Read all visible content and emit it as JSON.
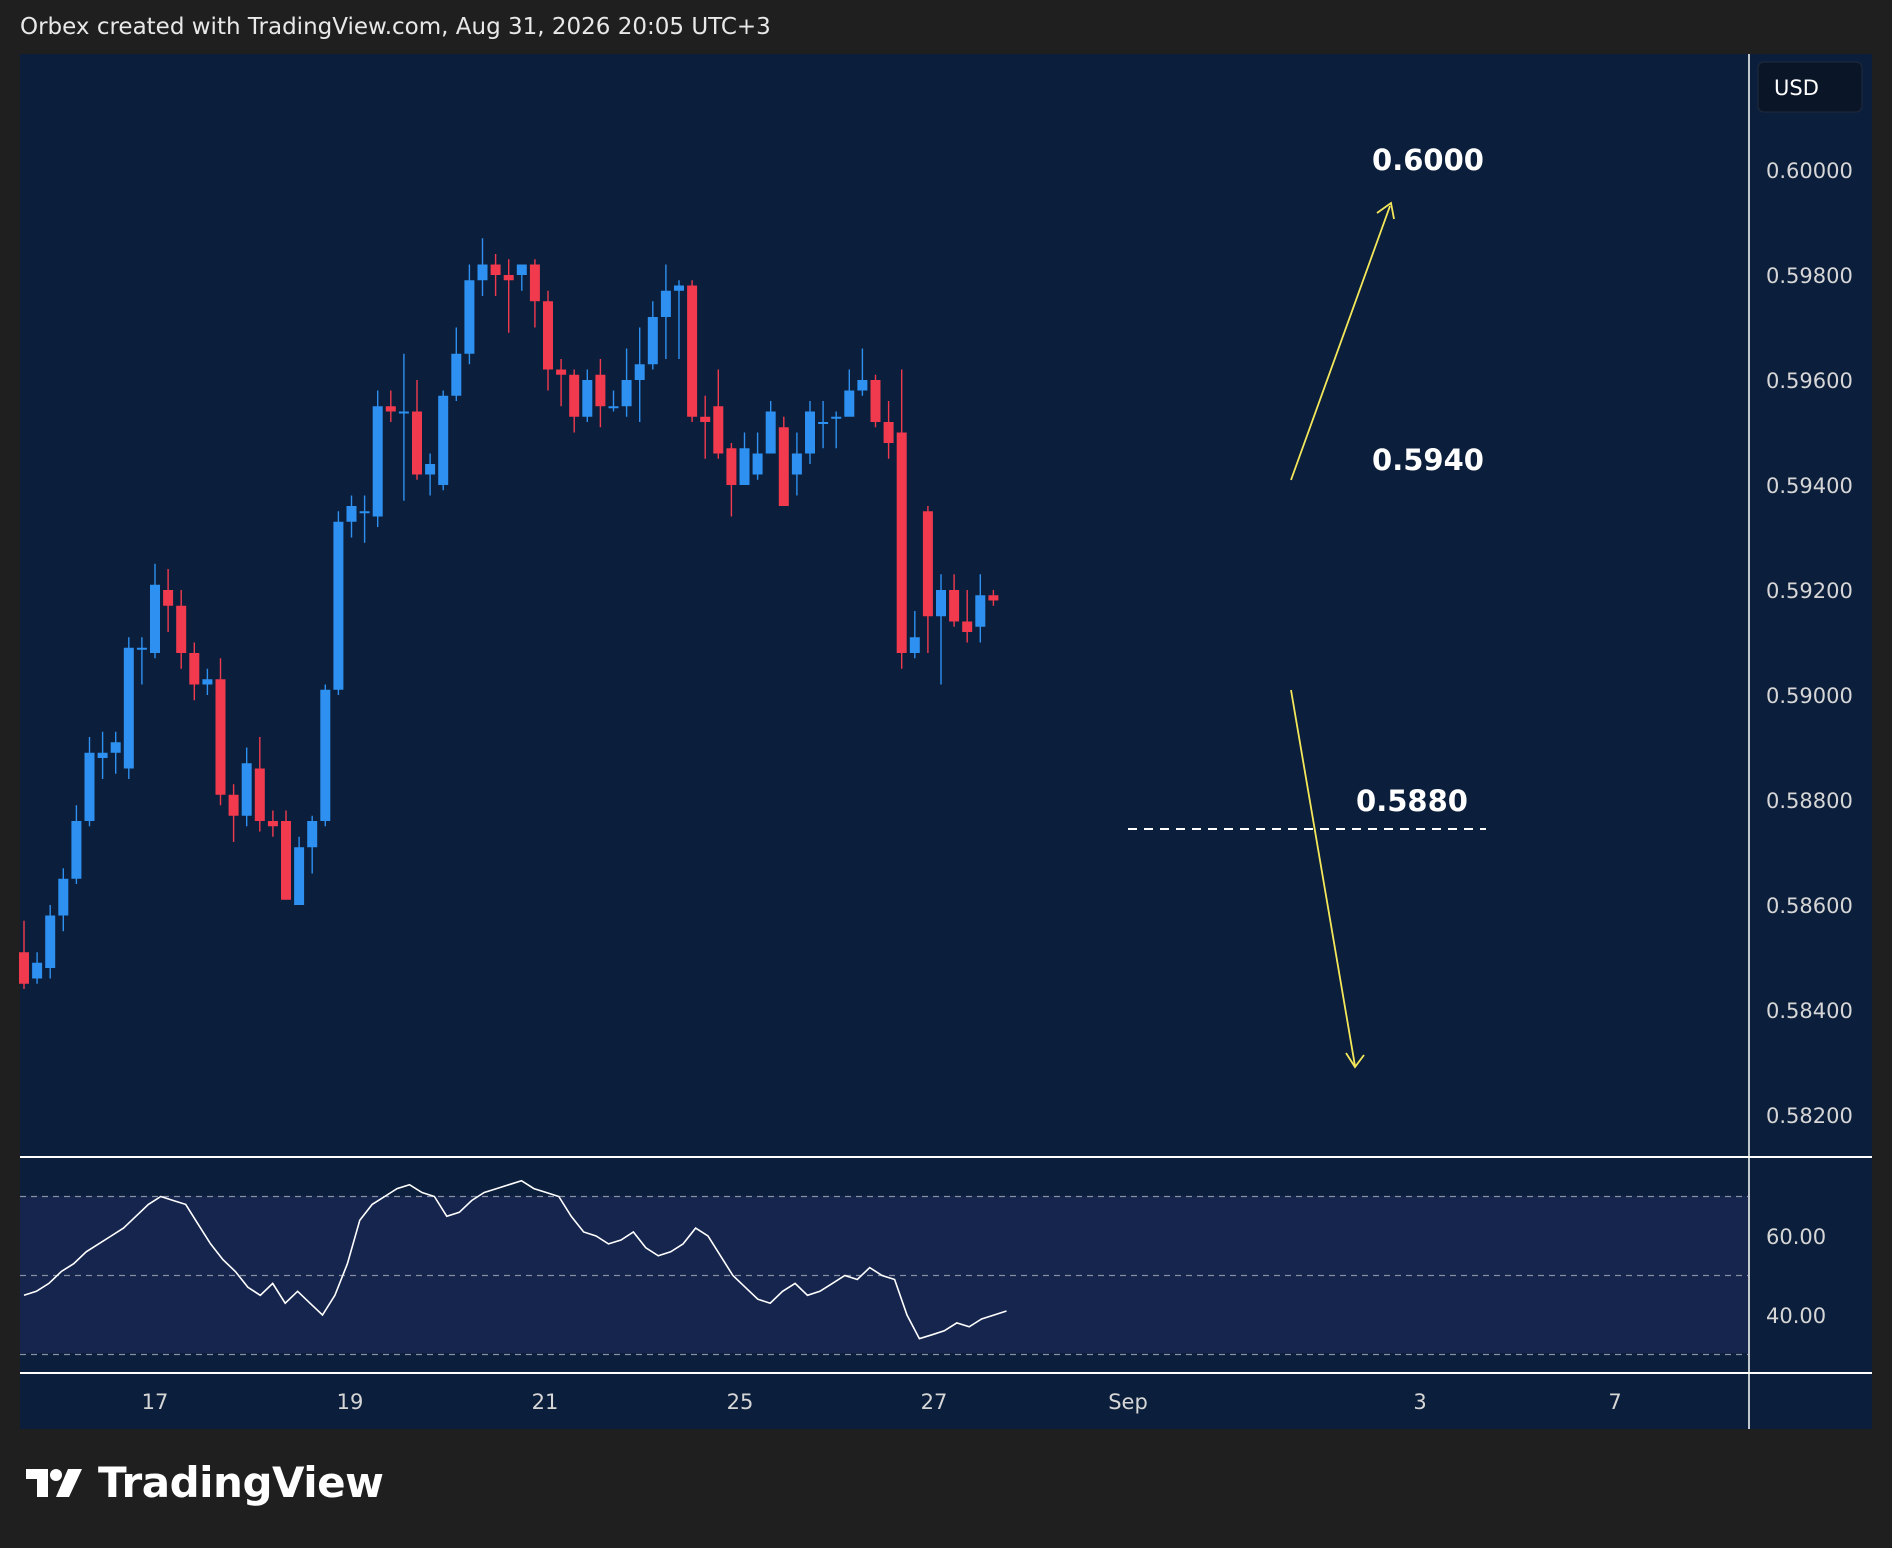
{
  "header": {
    "attribution": "Orbex created with TradingView.com, Aug 31, 2026 20:05 UTC+3"
  },
  "footer": {
    "logo_text": "TradingView"
  },
  "colors": {
    "background": "#1f1f1f",
    "pane": "#0b1e3b",
    "oscillator_band": "#16254d",
    "up_candle": "#2e90f0",
    "down_candle": "#f23a4e",
    "arrow": "#f4e85a",
    "text": "#ffffff",
    "axis_text": "#d6d6d6"
  },
  "chart_data": [
    {
      "type": "candlestick",
      "currency_label": "USD",
      "y_ticks": [
        "0.60000",
        "0.59800",
        "0.59600",
        "0.59400",
        "0.59200",
        "0.59000",
        "0.58800",
        "0.58600",
        "0.58400",
        "0.58200"
      ],
      "x_ticks": [
        "17",
        "19",
        "21",
        "25",
        "27",
        "Sep",
        "3",
        "7"
      ],
      "ylim": [
        0.5808,
        0.607
      ],
      "annotations": [
        {
          "text": "0.6000",
          "value": 0.6
        },
        {
          "text": "0.5940",
          "value": 0.594
        },
        {
          "text": "0.5880",
          "value": 0.588
        }
      ],
      "candles": [
        [
          0.5851,
          0.5845,
          0.5857,
          0.5844
        ],
        [
          0.5846,
          0.5849,
          0.5851,
          0.5845
        ],
        [
          0.5848,
          0.5858,
          0.586,
          0.5846
        ],
        [
          0.5858,
          0.5865,
          0.5867,
          0.5855
        ],
        [
          0.5865,
          0.5876,
          0.5879,
          0.5864
        ],
        [
          0.5876,
          0.5889,
          0.5892,
          0.5875
        ],
        [
          0.5888,
          0.5889,
          0.5893,
          0.5884
        ],
        [
          0.5889,
          0.5891,
          0.5893,
          0.5885
        ],
        [
          0.5886,
          0.5909,
          0.5911,
          0.5884
        ],
        [
          0.5909,
          0.5909,
          0.5911,
          0.5902
        ],
        [
          0.5908,
          0.5921,
          0.5925,
          0.5907
        ],
        [
          0.592,
          0.5917,
          0.5924,
          0.5912
        ],
        [
          0.5917,
          0.5908,
          0.592,
          0.5905
        ],
        [
          0.5908,
          0.5902,
          0.591,
          0.5899
        ],
        [
          0.5902,
          0.5903,
          0.5905,
          0.59
        ],
        [
          0.5903,
          0.5881,
          0.5907,
          0.5879
        ],
        [
          0.5881,
          0.5877,
          0.5883,
          0.5872
        ],
        [
          0.5877,
          0.5887,
          0.589,
          0.5875
        ],
        [
          0.5886,
          0.5876,
          0.5892,
          0.5874
        ],
        [
          0.5876,
          0.5875,
          0.5878,
          0.5873
        ],
        [
          0.5876,
          0.5861,
          0.5878,
          0.5861
        ],
        [
          0.586,
          0.5871,
          0.5873,
          0.586
        ],
        [
          0.5871,
          0.5876,
          0.5877,
          0.5866
        ],
        [
          0.5876,
          0.5901,
          0.5902,
          0.5875
        ],
        [
          0.5901,
          0.5933,
          0.5935,
          0.59
        ],
        [
          0.5933,
          0.5936,
          0.5938,
          0.593
        ],
        [
          0.5935,
          0.5935,
          0.5938,
          0.5929
        ],
        [
          0.5934,
          0.5955,
          0.5958,
          0.5932
        ],
        [
          0.5955,
          0.5954,
          0.5958,
          0.5952
        ],
        [
          0.5954,
          0.5954,
          0.5965,
          0.5937
        ],
        [
          0.5954,
          0.5942,
          0.596,
          0.5941
        ],
        [
          0.5942,
          0.5944,
          0.5946,
          0.5938
        ],
        [
          0.594,
          0.5957,
          0.5958,
          0.5939
        ],
        [
          0.5957,
          0.5965,
          0.597,
          0.5956
        ],
        [
          0.5965,
          0.5979,
          0.5982,
          0.5963
        ],
        [
          0.5979,
          0.5982,
          0.5987,
          0.5976
        ],
        [
          0.5982,
          0.598,
          0.5984,
          0.5976
        ],
        [
          0.598,
          0.5979,
          0.5983,
          0.5969
        ],
        [
          0.598,
          0.5982,
          0.5982,
          0.5977
        ],
        [
          0.5982,
          0.5975,
          0.5983,
          0.597
        ],
        [
          0.5975,
          0.5962,
          0.5977,
          0.5958
        ],
        [
          0.5962,
          0.5961,
          0.5964,
          0.5955
        ],
        [
          0.5961,
          0.5953,
          0.5962,
          0.595
        ],
        [
          0.5953,
          0.596,
          0.5962,
          0.5952
        ],
        [
          0.5961,
          0.5955,
          0.5964,
          0.5951
        ],
        [
          0.5955,
          0.5955,
          0.5958,
          0.5954
        ],
        [
          0.5955,
          0.596,
          0.5966,
          0.5953
        ],
        [
          0.596,
          0.5963,
          0.597,
          0.5952
        ],
        [
          0.5963,
          0.5972,
          0.5975,
          0.5962
        ],
        [
          0.5972,
          0.5977,
          0.5982,
          0.5964
        ],
        [
          0.5977,
          0.5978,
          0.5979,
          0.5964
        ],
        [
          0.5978,
          0.5953,
          0.5979,
          0.5952
        ],
        [
          0.5953,
          0.5952,
          0.5957,
          0.5945
        ],
        [
          0.5955,
          0.5946,
          0.5962,
          0.5945
        ],
        [
          0.5947,
          0.594,
          0.5948,
          0.5934
        ],
        [
          0.594,
          0.5947,
          0.595,
          0.5942
        ],
        [
          0.5942,
          0.5946,
          0.595,
          0.5941
        ],
        [
          0.5946,
          0.5954,
          0.5956,
          0.5947
        ],
        [
          0.5951,
          0.5936,
          0.5953,
          0.5943
        ],
        [
          0.5942,
          0.5946,
          0.595,
          0.5938
        ],
        [
          0.5946,
          0.5954,
          0.5956,
          0.5944
        ],
        [
          0.5952,
          0.5952,
          0.5956,
          0.5947
        ],
        [
          0.5953,
          0.5953,
          0.5954,
          0.5947
        ],
        [
          0.5953,
          0.5958,
          0.5962,
          0.5955
        ],
        [
          0.5958,
          0.596,
          0.5966,
          0.5957
        ],
        [
          0.596,
          0.5952,
          0.5961,
          0.5951
        ],
        [
          0.5952,
          0.5948,
          0.5956,
          0.5945
        ],
        [
          0.595,
          0.5908,
          0.5962,
          0.5905
        ],
        [
          0.5908,
          0.5911,
          0.5916,
          0.5907
        ],
        [
          0.5935,
          0.5915,
          0.5936,
          0.5908
        ],
        [
          0.5915,
          0.592,
          0.5923,
          0.5902
        ],
        [
          0.592,
          0.5914,
          0.5923,
          0.5913
        ],
        [
          0.5914,
          0.5912,
          0.592,
          0.591
        ],
        [
          0.5913,
          0.5919,
          0.5923,
          0.591
        ],
        [
          0.5919,
          0.5918,
          0.592,
          0.5917
        ]
      ]
    },
    {
      "type": "line",
      "y_ticks": [
        "60.00",
        "40.00"
      ],
      "ylim": [
        25,
        75
      ],
      "guide_levels": [
        70,
        50,
        30
      ],
      "series": [
        {
          "values": [
            45,
            46,
            48,
            51,
            53,
            56,
            58,
            60,
            62,
            65,
            68,
            70,
            69,
            68,
            63,
            58,
            54,
            51,
            47,
            45,
            48,
            43,
            46,
            43,
            40,
            45,
            53,
            64,
            68,
            70,
            72,
            73,
            71,
            70,
            65,
            66,
            69,
            71,
            72,
            73,
            74,
            72,
            71,
            70,
            65,
            61,
            60,
            58,
            59,
            61,
            57,
            55,
            56,
            58,
            62,
            60,
            55,
            50,
            47,
            44,
            43,
            46,
            48,
            45,
            46,
            48,
            50,
            49,
            52,
            50,
            49,
            40,
            34,
            35,
            36,
            38,
            37,
            39,
            40,
            41
          ]
        }
      ]
    }
  ]
}
